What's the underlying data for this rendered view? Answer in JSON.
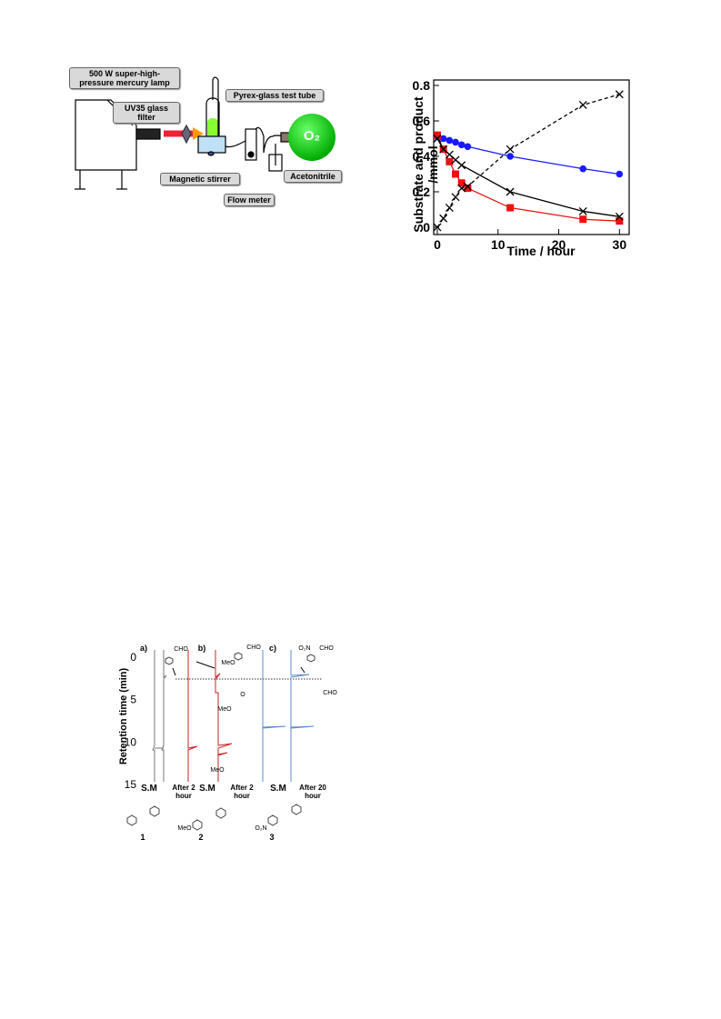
{
  "apparatus": {
    "lamp": "500 W super-high-pressure mercury lamp",
    "filter": "UV35 glass filter",
    "tube": "Pyrex-glass test tube",
    "stirrer": "Magnetic stirrer",
    "flow_meter": "Flow meter",
    "trap": "Acetonitrile",
    "gas": "O₂"
  },
  "chart_data": {
    "type": "scatter",
    "y_label": "Substrate and product /mmol",
    "x_label": "Time / hour",
    "xlim": [
      0,
      31
    ],
    "ylim": [
      0,
      0.8
    ],
    "xticks": [
      0,
      10,
      20,
      30
    ],
    "yticks": [
      0,
      0.2,
      0.4,
      0.6,
      0.8
    ],
    "series": [
      {
        "color": "#1a1aff",
        "marker": "circle",
        "dashed": false,
        "x": [
          0,
          1,
          2,
          3,
          4,
          5,
          12,
          24,
          30
        ],
        "values": [
          0.51,
          0.5,
          0.49,
          0.48,
          0.465,
          0.455,
          0.4,
          0.33,
          0.3
        ]
      },
      {
        "color": "#ee1111",
        "marker": "square",
        "dashed": false,
        "x": [
          0,
          1,
          2,
          3,
          4,
          5,
          12,
          24,
          30
        ],
        "values": [
          0.52,
          0.44,
          0.37,
          0.3,
          0.25,
          0.22,
          0.11,
          0.045,
          0.035
        ]
      },
      {
        "color": "#000000",
        "marker": "x",
        "dashed": false,
        "x": [
          0,
          1,
          2,
          3,
          4,
          12,
          24,
          30
        ],
        "values": [
          0.5,
          0.44,
          0.41,
          0.38,
          0.35,
          0.2,
          0.09,
          0.06
        ]
      },
      {
        "color": "#000000",
        "marker": "x",
        "dashed": true,
        "x": [
          0,
          1,
          2,
          3,
          4,
          5,
          12,
          24,
          30
        ],
        "values": [
          0,
          0.05,
          0.11,
          0.17,
          0.22,
          0.23,
          0.44,
          0.69,
          0.75
        ]
      }
    ]
  },
  "chromatogram": {
    "y_label": "Retention time (min)",
    "yticks": [
      0,
      5,
      10,
      15
    ],
    "panels": [
      {
        "label": "a)",
        "lanes": [
          "S.M",
          "After 2 hour"
        ],
        "compound": "1"
      },
      {
        "label": "b)",
        "lanes": [
          "S.M",
          "After 2 hour"
        ],
        "compound": "2"
      },
      {
        "label": "c)",
        "lanes": [
          "S.M",
          "After 20 hour"
        ],
        "compound": "3"
      }
    ],
    "groups": {
      "aldehyde": "CHO",
      "methoxy": "MeO",
      "nitro": "O₂N",
      "epoxide": "O"
    }
  }
}
